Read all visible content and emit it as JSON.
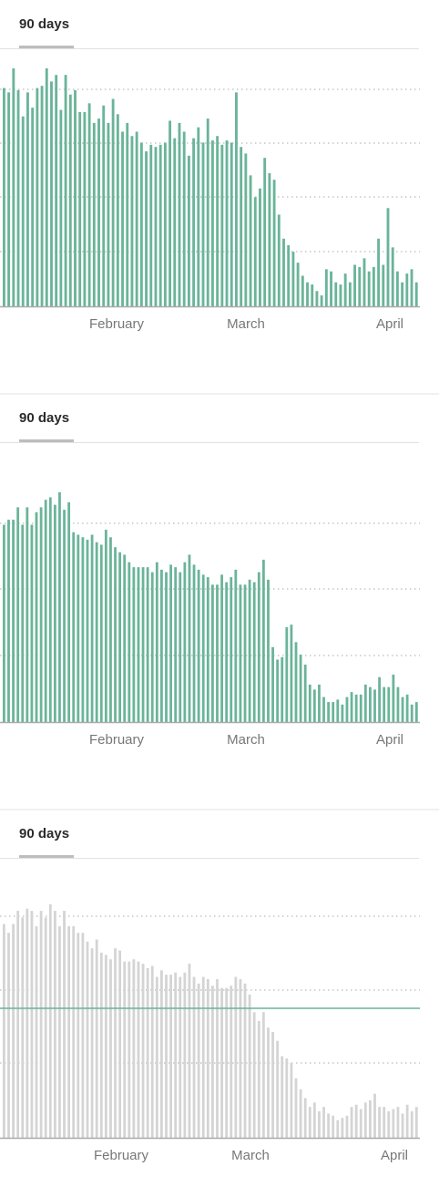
{
  "chart_data": [
    {
      "type": "bar",
      "tab_label": "90 days",
      "x_tick_labels": [
        "February",
        "March",
        "April"
      ],
      "bar_color": "#6ab49a",
      "grid": "dotted",
      "values": [
        100,
        98,
        109,
        99,
        87,
        98,
        91,
        100,
        101,
        109,
        103,
        106,
        90,
        106,
        97,
        99,
        89,
        89,
        93,
        84,
        86,
        92,
        84,
        95,
        88,
        80,
        84,
        78,
        80,
        75,
        71,
        74,
        73,
        74,
        75,
        85,
        77,
        84,
        80,
        69,
        77,
        82,
        75,
        86,
        76,
        78,
        74,
        76,
        75,
        98,
        73,
        70,
        60,
        50,
        54,
        68,
        61,
        58,
        42,
        31,
        28,
        25,
        20,
        14,
        11,
        10,
        7,
        5,
        17,
        16,
        11,
        10,
        15,
        11,
        19,
        18,
        22,
        16,
        18,
        31,
        19,
        45,
        27,
        16,
        11,
        15,
        17,
        11
      ],
      "y_max": 109
    },
    {
      "type": "bar",
      "tab_label": "90 days",
      "x_tick_labels": [
        "February",
        "March",
        "April"
      ],
      "bar_color": "#6ab49a",
      "grid": "dotted",
      "values": [
        79,
        81,
        81,
        86,
        79,
        86,
        79,
        84,
        86,
        89,
        90,
        87,
        92,
        85,
        88,
        76,
        75,
        74,
        73,
        75,
        72,
        71,
        77,
        74,
        70,
        68,
        67,
        64,
        62,
        62,
        62,
        62,
        60,
        64,
        61,
        60,
        63,
        62,
        60,
        64,
        67,
        63,
        61,
        59,
        58,
        55,
        55,
        59,
        56,
        58,
        61,
        55,
        55,
        57,
        56,
        60,
        65,
        57,
        30,
        25,
        26,
        38,
        39,
        32,
        27,
        23,
        15,
        13,
        15,
        10,
        8,
        8,
        9,
        7,
        10,
        12,
        11,
        11,
        15,
        14,
        13,
        18,
        14,
        14,
        19,
        14,
        10,
        11,
        7,
        8
      ],
      "y_max": 96
    },
    {
      "type": "bar",
      "tab_label": "90 days",
      "x_tick_labels": [
        "February",
        "March",
        "April"
      ],
      "bar_color": "#d4d4d4",
      "highlight_line_color": "#6ab49a",
      "grid": "dotted",
      "values": [
        97,
        93,
        97,
        103,
        100,
        104,
        103,
        96,
        103,
        100,
        106,
        103,
        96,
        103,
        96,
        96,
        93,
        93,
        89,
        86,
        90,
        84,
        83,
        81,
        86,
        85,
        80,
        80,
        81,
        80,
        79,
        77,
        78,
        73,
        76,
        74,
        74,
        75,
        73,
        75,
        79,
        73,
        70,
        73,
        72,
        69,
        72,
        68,
        68,
        69,
        73,
        72,
        70,
        65,
        57,
        53,
        57,
        50,
        48,
        44,
        37,
        36,
        34,
        27,
        22,
        18,
        14,
        16,
        12,
        14,
        11,
        10,
        8,
        9,
        10,
        14,
        15,
        13,
        16,
        17,
        20,
        14,
        14,
        12,
        13,
        14,
        11,
        15,
        12,
        14
      ],
      "y_max": 108
    }
  ]
}
